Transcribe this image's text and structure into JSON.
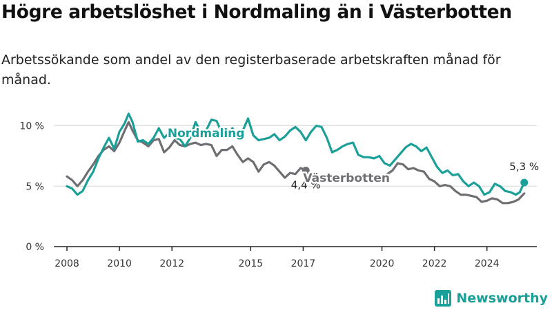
{
  "header": {
    "title": "Högre arbetslöshet i Nordmaling än i Västerbotten",
    "subtitle": "Arbetssökande som andel av den registerbaserade arbetskraften månad för månad."
  },
  "brand": {
    "name": "Newsworthy",
    "icon": "bar-chart-logo-icon",
    "color": "#1aa098"
  },
  "colors": {
    "nordmaling": "#1aa098",
    "vasterbotten": "#6e6e73",
    "grid": "#d9d9d9",
    "axis": "#222222"
  },
  "chart_data": {
    "type": "line",
    "title": "Högre arbetslöshet i Nordmaling än i Västerbotten",
    "subtitle": "Arbetssökande som andel av den registerbaserade arbetskraften månad för månad.",
    "xlim": [
      2007.5,
      2025.9
    ],
    "ylim": [
      0,
      11
    ],
    "grid": true,
    "x_ticks": [
      {
        "value": 2008,
        "label": "2008"
      },
      {
        "value": 2010,
        "label": "2010"
      },
      {
        "value": 2012,
        "label": "2012"
      },
      {
        "value": 2015,
        "label": "2015"
      },
      {
        "value": 2017,
        "label": "2017"
      },
      {
        "value": 2020,
        "label": "2020"
      },
      {
        "value": 2022,
        "label": "2022"
      },
      {
        "value": 2024,
        "label": "2024"
      }
    ],
    "y_ticks": [
      {
        "value": 0,
        "label": "0 %"
      },
      {
        "value": 5,
        "label": "5 %"
      },
      {
        "value": 10,
        "label": "10 %"
      }
    ],
    "series": [
      {
        "name": "Nordmaling",
        "color": "#1aa098",
        "end_label": "5,3 %",
        "points": [
          [
            2008.0,
            5.0
          ],
          [
            2008.2,
            4.8
          ],
          [
            2008.4,
            4.3
          ],
          [
            2008.6,
            4.6
          ],
          [
            2008.8,
            5.5
          ],
          [
            2009.0,
            6.2
          ],
          [
            2009.2,
            7.3
          ],
          [
            2009.4,
            8.2
          ],
          [
            2009.6,
            9.0
          ],
          [
            2009.8,
            8.1
          ],
          [
            2010.0,
            9.5
          ],
          [
            2010.2,
            10.2
          ],
          [
            2010.35,
            11.0
          ],
          [
            2010.5,
            10.3
          ],
          [
            2010.7,
            8.7
          ],
          [
            2010.9,
            8.8
          ],
          [
            2011.1,
            8.5
          ],
          [
            2011.3,
            9.0
          ],
          [
            2011.5,
            9.8
          ],
          [
            2011.7,
            9.0
          ],
          [
            2011.9,
            9.4
          ],
          [
            2012.1,
            9.0
          ],
          [
            2012.3,
            8.9
          ],
          [
            2012.5,
            8.3
          ],
          [
            2012.7,
            9.0
          ],
          [
            2012.9,
            10.3
          ],
          [
            2013.1,
            9.5
          ],
          [
            2013.3,
            9.6
          ],
          [
            2013.5,
            10.5
          ],
          [
            2013.7,
            10.4
          ],
          [
            2013.9,
            9.4
          ],
          [
            2014.1,
            9.0
          ],
          [
            2014.3,
            9.8
          ],
          [
            2014.5,
            9.3
          ],
          [
            2014.7,
            9.6
          ],
          [
            2014.9,
            10.6
          ],
          [
            2015.1,
            9.2
          ],
          [
            2015.3,
            8.8
          ],
          [
            2015.5,
            8.9
          ],
          [
            2015.7,
            9.0
          ],
          [
            2015.9,
            9.3
          ],
          [
            2016.1,
            8.8
          ],
          [
            2016.3,
            9.1
          ],
          [
            2016.5,
            9.6
          ],
          [
            2016.7,
            9.9
          ],
          [
            2016.9,
            9.5
          ],
          [
            2017.1,
            8.8
          ],
          [
            2017.3,
            9.5
          ],
          [
            2017.5,
            10.0
          ],
          [
            2017.7,
            9.9
          ],
          [
            2017.9,
            9.0
          ],
          [
            2018.1,
            7.8
          ],
          [
            2018.3,
            8.0
          ],
          [
            2018.5,
            8.3
          ],
          [
            2018.7,
            8.5
          ],
          [
            2018.9,
            8.6
          ],
          [
            2019.1,
            7.6
          ],
          [
            2019.3,
            7.4
          ],
          [
            2019.5,
            7.4
          ],
          [
            2019.7,
            7.3
          ],
          [
            2019.9,
            7.5
          ],
          [
            2020.1,
            6.9
          ],
          [
            2020.3,
            6.7
          ],
          [
            2020.5,
            7.2
          ],
          [
            2020.7,
            7.7
          ],
          [
            2020.9,
            8.2
          ],
          [
            2021.1,
            8.5
          ],
          [
            2021.3,
            8.3
          ],
          [
            2021.5,
            7.9
          ],
          [
            2021.7,
            8.2
          ],
          [
            2021.9,
            7.4
          ],
          [
            2022.1,
            6.6
          ],
          [
            2022.3,
            6.1
          ],
          [
            2022.5,
            6.3
          ],
          [
            2022.7,
            5.9
          ],
          [
            2022.9,
            6.0
          ],
          [
            2023.1,
            5.4
          ],
          [
            2023.3,
            5.0
          ],
          [
            2023.5,
            5.3
          ],
          [
            2023.7,
            5.0
          ],
          [
            2023.9,
            4.3
          ],
          [
            2024.1,
            4.5
          ],
          [
            2024.3,
            5.2
          ],
          [
            2024.5,
            5.0
          ],
          [
            2024.7,
            4.6
          ],
          [
            2024.9,
            4.5
          ],
          [
            2025.1,
            4.3
          ],
          [
            2025.25,
            4.5
          ],
          [
            2025.42,
            5.3
          ]
        ]
      },
      {
        "name": "Västerbotten",
        "color": "#6e6e73",
        "end_label": "4,4 %",
        "points": [
          [
            2008.0,
            5.8
          ],
          [
            2008.2,
            5.5
          ],
          [
            2008.4,
            5.0
          ],
          [
            2008.6,
            5.5
          ],
          [
            2008.8,
            6.2
          ],
          [
            2009.0,
            6.8
          ],
          [
            2009.2,
            7.5
          ],
          [
            2009.4,
            8.0
          ],
          [
            2009.6,
            8.3
          ],
          [
            2009.8,
            7.9
          ],
          [
            2010.0,
            8.6
          ],
          [
            2010.2,
            9.6
          ],
          [
            2010.35,
            10.3
          ],
          [
            2010.5,
            9.6
          ],
          [
            2010.7,
            8.8
          ],
          [
            2010.9,
            8.6
          ],
          [
            2011.1,
            8.3
          ],
          [
            2011.3,
            8.8
          ],
          [
            2011.5,
            8.9
          ],
          [
            2011.7,
            7.8
          ],
          [
            2011.9,
            8.2
          ],
          [
            2012.1,
            8.8
          ],
          [
            2012.3,
            8.4
          ],
          [
            2012.5,
            8.3
          ],
          [
            2012.7,
            8.5
          ],
          [
            2012.9,
            8.6
          ],
          [
            2013.1,
            8.4
          ],
          [
            2013.3,
            8.5
          ],
          [
            2013.5,
            8.4
          ],
          [
            2013.7,
            7.5
          ],
          [
            2013.9,
            8.0
          ],
          [
            2014.1,
            8.0
          ],
          [
            2014.3,
            8.3
          ],
          [
            2014.5,
            7.6
          ],
          [
            2014.7,
            7.0
          ],
          [
            2014.9,
            7.3
          ],
          [
            2015.1,
            7.0
          ],
          [
            2015.3,
            6.2
          ],
          [
            2015.5,
            6.8
          ],
          [
            2015.7,
            7.0
          ],
          [
            2015.9,
            6.7
          ],
          [
            2016.1,
            6.2
          ],
          [
            2016.3,
            5.7
          ],
          [
            2016.5,
            6.1
          ],
          [
            2016.7,
            6.0
          ],
          [
            2016.9,
            6.5
          ],
          [
            2017.1,
            6.3
          ]
        ]
      },
      {
        "name": "Västerbotten",
        "color": "#6e6e73",
        "points": [
          [
            2020.2,
            6.0
          ],
          [
            2020.4,
            6.3
          ],
          [
            2020.6,
            6.9
          ],
          [
            2020.8,
            6.8
          ],
          [
            2021.0,
            6.4
          ],
          [
            2021.2,
            6.5
          ],
          [
            2021.4,
            6.3
          ],
          [
            2021.6,
            6.2
          ],
          [
            2021.8,
            5.6
          ],
          [
            2022.0,
            5.4
          ],
          [
            2022.2,
            5.0
          ],
          [
            2022.4,
            5.1
          ],
          [
            2022.6,
            5.0
          ],
          [
            2022.8,
            4.6
          ],
          [
            2023.0,
            4.3
          ],
          [
            2023.2,
            4.3
          ],
          [
            2023.4,
            4.2
          ],
          [
            2023.6,
            4.1
          ],
          [
            2023.8,
            3.7
          ],
          [
            2024.0,
            3.8
          ],
          [
            2024.2,
            4.0
          ],
          [
            2024.4,
            3.9
          ],
          [
            2024.6,
            3.6
          ],
          [
            2024.8,
            3.6
          ],
          [
            2025.0,
            3.7
          ],
          [
            2025.2,
            3.9
          ],
          [
            2025.42,
            4.4
          ]
        ]
      }
    ],
    "annotations": [
      {
        "series": "Nordmaling",
        "text": "Nordmaling",
        "x": 2013.3,
        "y": 9.05
      },
      {
        "series": "Västerbotten",
        "text": "Västerbotten",
        "x": 2018.65,
        "y": 5.35
      }
    ]
  }
}
